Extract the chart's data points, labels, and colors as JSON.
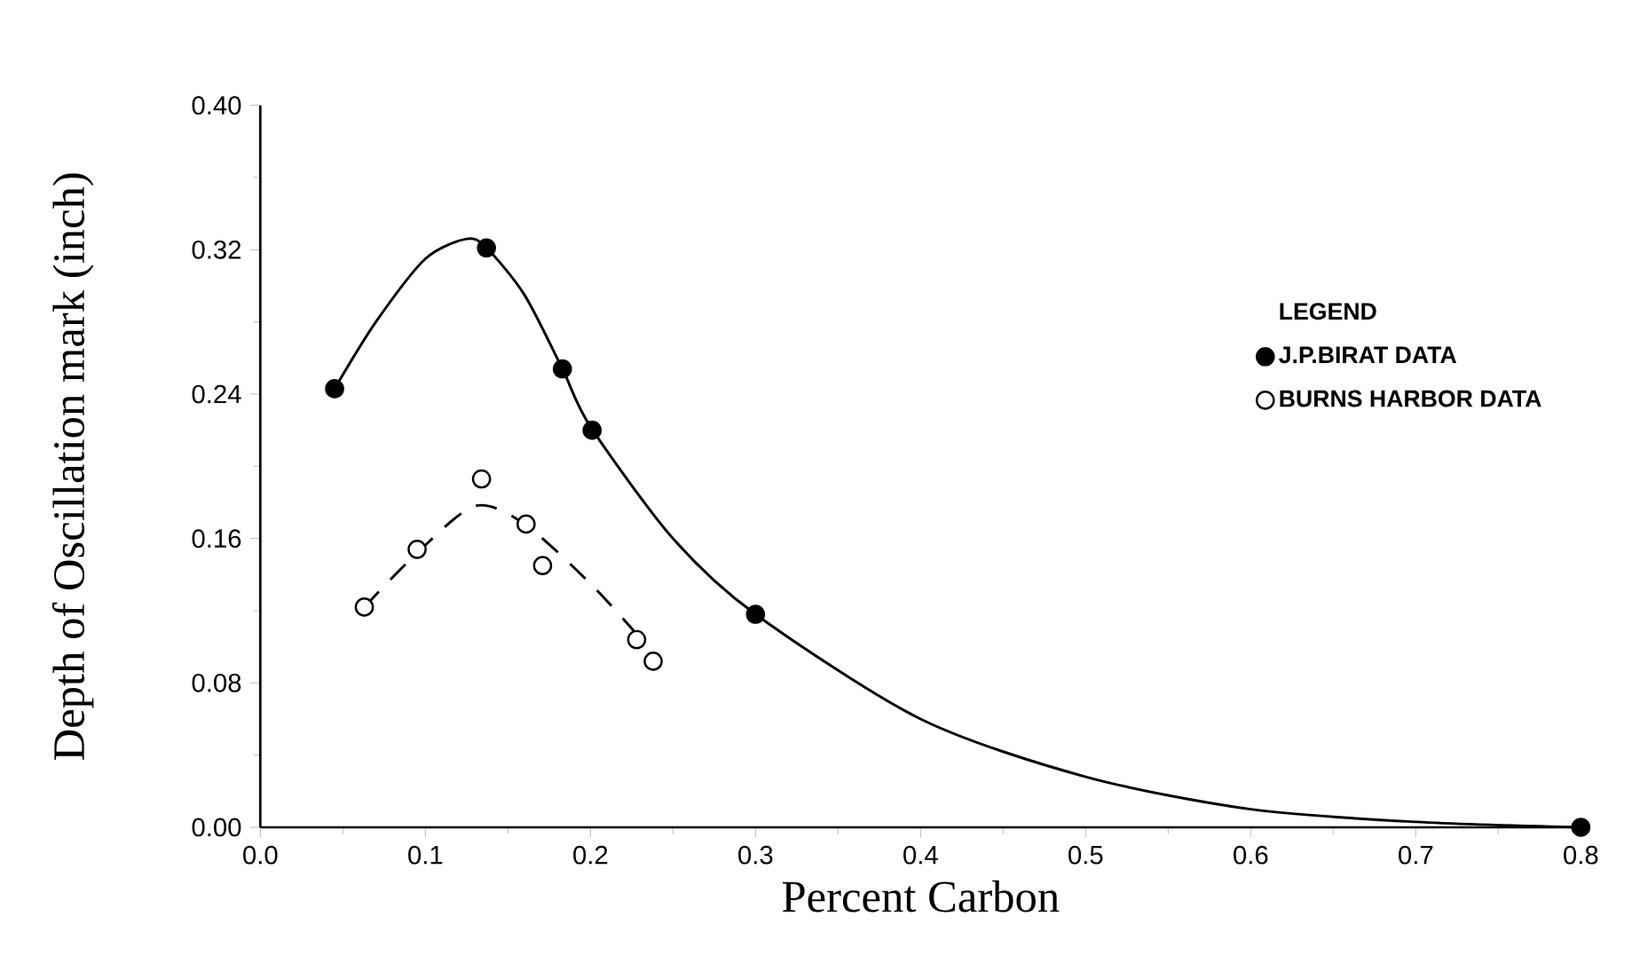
{
  "chart_data": {
    "type": "scatter",
    "xlabel": "Percent Carbon",
    "ylabel": "Depth of Oscillation mark (inch)",
    "legend_title": "LEGEND",
    "xlim": [
      0,
      0.8
    ],
    "ylim": [
      0,
      0.4
    ],
    "xticks": [
      {
        "value": 0,
        "label": "0.0"
      },
      0.1,
      0.2,
      0.3,
      0.4,
      0.5,
      0.6,
      0.7,
      0.8
    ],
    "yticks": [
      {
        "value": 0,
        "label": "0.00"
      },
      0.08,
      0.16,
      0.24,
      0.32,
      {
        "value": 0.4,
        "label": "0.40"
      }
    ],
    "legend": "right",
    "grid": false,
    "series": [
      {
        "name": "J.P.BIRAT DATA",
        "color": "#000000",
        "marker": "circle",
        "x": [
          0.045,
          0.137,
          0.183,
          0.201,
          0.3,
          0.8
        ],
        "values": [
          0.243,
          0.321,
          0.254,
          0.22,
          0.118,
          0.0
        ]
      },
      {
        "name": "BURNS HARBOR DATA",
        "color": "#ffffff",
        "marker": "circle",
        "x": [
          0.063,
          0.095,
          0.134,
          0.161,
          0.171,
          0.228,
          0.238
        ],
        "values": [
          0.122,
          0.154,
          0.193,
          0.168,
          0.145,
          0.104,
          0.092
        ]
      },
      {
        "type": "line",
        "color": "#000000",
        "marker": "none",
        "line_style": "solid",
        "x": [
          0.045,
          0.07,
          0.1,
          0.125,
          0.137,
          0.16,
          0.183,
          0.2,
          0.25,
          0.3,
          0.4,
          0.5,
          0.6,
          0.7,
          0.8
        ],
        "values": [
          0.243,
          0.28,
          0.315,
          0.326,
          0.321,
          0.295,
          0.254,
          0.222,
          0.16,
          0.118,
          0.06,
          0.028,
          0.01,
          0.003,
          0.0
        ]
      },
      {
        "type": "line",
        "color": "#000000",
        "marker": "none",
        "line_style": "dashed",
        "x": [
          0.063,
          0.095,
          0.13,
          0.16,
          0.2,
          0.23
        ],
        "values": [
          0.122,
          0.152,
          0.178,
          0.168,
          0.135,
          0.105
        ]
      }
    ]
  }
}
